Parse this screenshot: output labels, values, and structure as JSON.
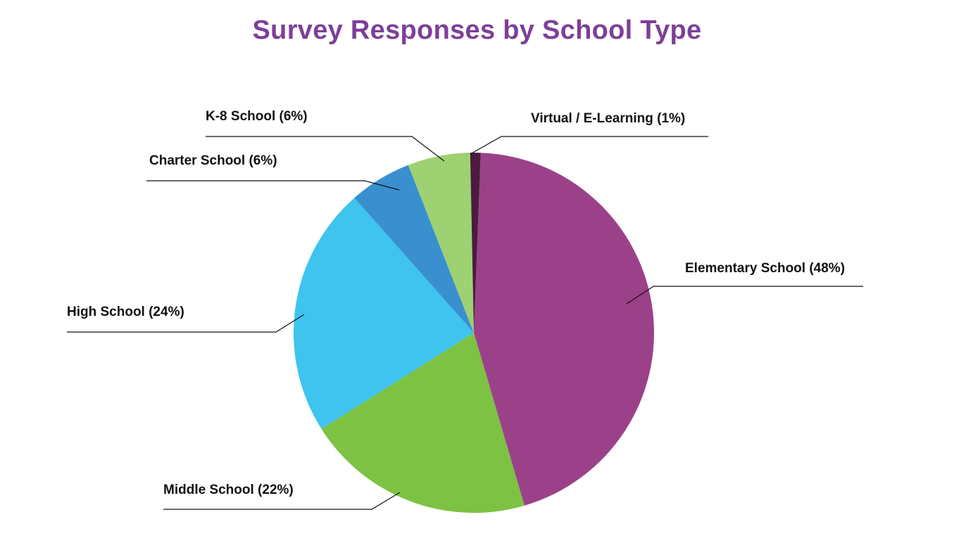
{
  "chart_data": {
    "type": "pie",
    "title": "Survey Responses by School Type",
    "slices": [
      {
        "label": "Elementary School (48%)",
        "category": "Elementary School",
        "value": 48,
        "color": "#9b4189"
      },
      {
        "label": "Middle School (22%)",
        "category": "Middle School",
        "value": 22,
        "color": "#7dc242"
      },
      {
        "label": "High School (24%)",
        "category": "High School",
        "value": 24,
        "color": "#3ec4ee"
      },
      {
        "label": "Charter School (6%)",
        "category": "Charter School",
        "value": 6,
        "color": "#3a8fcf"
      },
      {
        "label": "K-8 School (6%)",
        "category": "K-8 School",
        "value": 6,
        "color": "#9ed172"
      },
      {
        "label": "Virtual / E-Learning (1%)",
        "category": "Virtual / E-Learning",
        "value": 1,
        "color": "#4a1b3f"
      }
    ]
  }
}
